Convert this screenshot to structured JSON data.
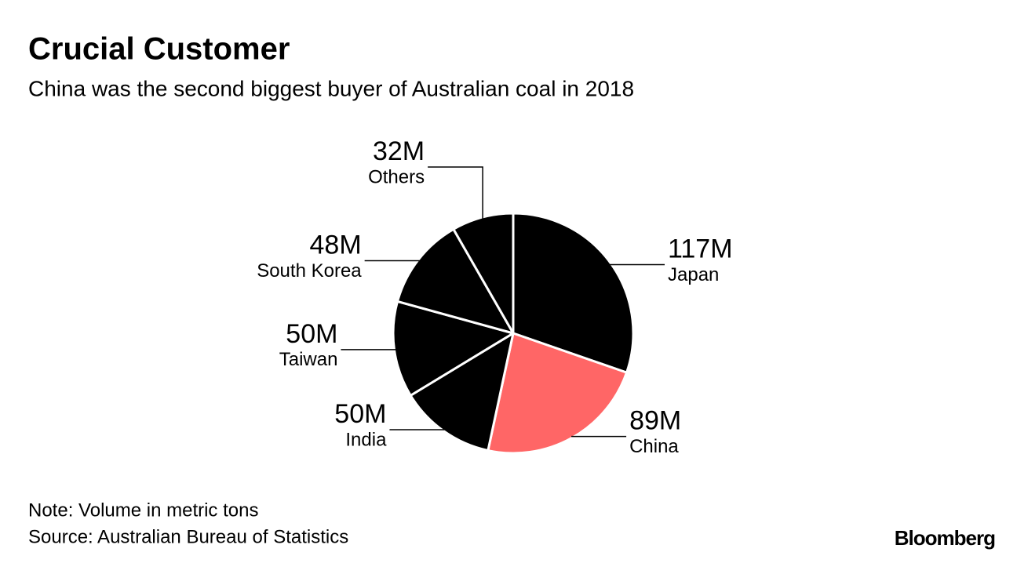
{
  "chart_data": {
    "type": "pie",
    "title": "Crucial Customer",
    "subtitle": "China was the second biggest buyer of Australian coal in 2018",
    "categories": [
      "Japan",
      "China",
      "India",
      "Taiwan",
      "South Korea",
      "Others"
    ],
    "values": [
      117,
      89,
      50,
      50,
      48,
      32
    ],
    "value_labels": [
      "117M",
      "89M",
      "50M",
      "50M",
      "48M",
      "32M"
    ],
    "colors": [
      "#000000",
      "#ff6666",
      "#000000",
      "#000000",
      "#000000",
      "#000000"
    ],
    "note": "Note: Volume in metric tons",
    "source": "Source: Australian Bureau of Statistics",
    "brand": "Bloomberg"
  }
}
